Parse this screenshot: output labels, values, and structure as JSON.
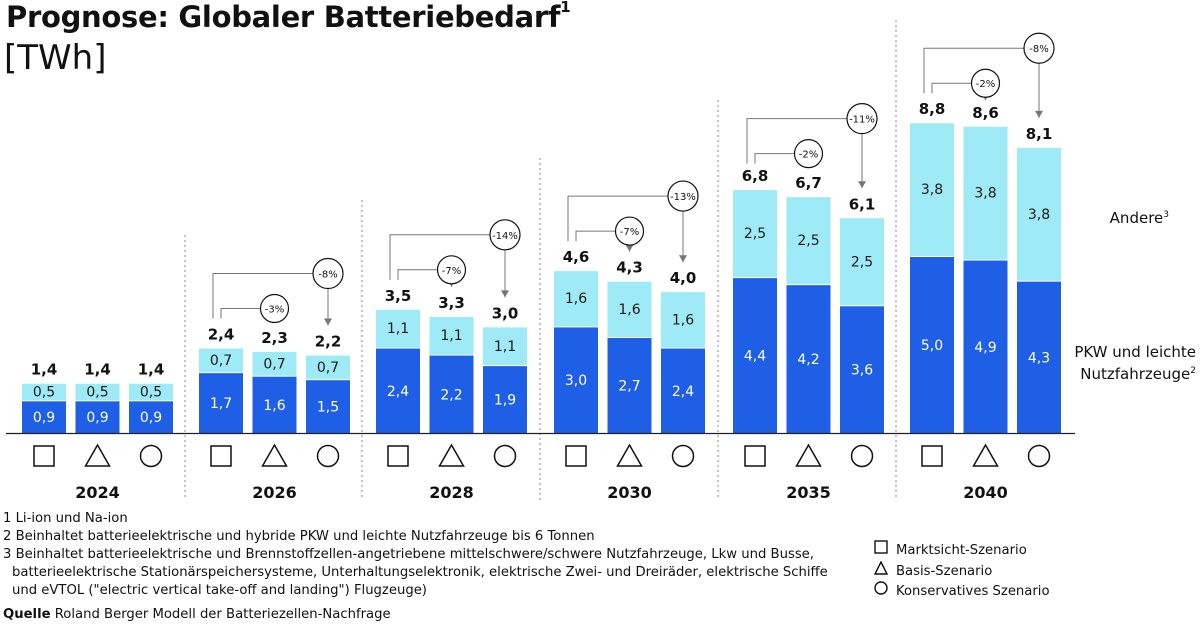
{
  "title": "Prognose: Globaler Batteriebedarf",
  "title_sup": "1",
  "unit": "[TWh]",
  "chart_data": {
    "type": "bar",
    "stacked": true,
    "years": [
      "2024",
      "2026",
      "2028",
      "2030",
      "2035",
      "2040"
    ],
    "scenarios": [
      "Marktsicht-Szenario",
      "Basis-Szenario",
      "Konservatives Szenario"
    ],
    "series": [
      {
        "name": "PKW und leichte Nutzfahrzeuge",
        "name_sup": "2",
        "color": "#1f5fe6",
        "label_color": "#ffffff",
        "values": [
          [
            0.9,
            0.9,
            0.9
          ],
          [
            1.7,
            1.6,
            1.5
          ],
          [
            2.4,
            2.2,
            1.9
          ],
          [
            3.0,
            2.7,
            2.4
          ],
          [
            4.4,
            4.2,
            3.6
          ],
          [
            5.0,
            4.9,
            4.3
          ]
        ]
      },
      {
        "name": "Andere",
        "name_sup": "3",
        "color": "#9eeaf6",
        "label_color": "#1a1a1a",
        "values": [
          [
            0.5,
            0.5,
            0.5
          ],
          [
            0.7,
            0.7,
            0.7
          ],
          [
            1.1,
            1.1,
            1.1
          ],
          [
            1.6,
            1.6,
            1.6
          ],
          [
            2.5,
            2.5,
            2.5
          ],
          [
            3.8,
            3.8,
            3.8
          ]
        ]
      }
    ],
    "totals": [
      [
        1.4,
        1.4,
        1.4
      ],
      [
        2.4,
        2.3,
        2.2
      ],
      [
        3.5,
        3.3,
        3.0
      ],
      [
        4.6,
        4.3,
        4.0
      ],
      [
        6.8,
        6.7,
        6.1
      ],
      [
        8.8,
        8.6,
        8.1
      ]
    ],
    "deltas": [
      null,
      [
        "-3%",
        "-8%"
      ],
      [
        "-7%",
        "-14%"
      ],
      [
        "-7%",
        "-13%"
      ],
      [
        "-2%",
        "-11%"
      ],
      [
        "-2%",
        "-8%"
      ]
    ],
    "decimal_separator": ","
  },
  "legend": {
    "series_labels": [
      {
        "text": "Andere",
        "sup": "3"
      },
      {
        "text": "PKW und leichte",
        "text2": "Nutzfahrzeuge",
        "sup": "2"
      }
    ],
    "scenarios": [
      {
        "symbol": "square",
        "label": "Marktsicht-Szenario"
      },
      {
        "symbol": "triangle",
        "label": "Basis-Szenario"
      },
      {
        "symbol": "circle",
        "label": "Konservatives Szenario"
      }
    ]
  },
  "footnotes": [
    "1 Li-ion und Na-ion",
    "2 Beinhaltet batterieelektrische und hybride PKW und leichte Nutzfahrzeuge bis 6 Tonnen",
    "3 Beinhaltet batterieelektrische und Brennstoffzellen-angetriebene mittelschwere/schwere Nutzfahrzeuge, Lkw und Busse,",
    "batterieelektrische Stationärspeichersysteme, Unterhaltungselektronik, elektrische Zwei- und Dreiräder, elektrische Schiffe",
    "und eVTOL (\"electric vertical take-off and landing\") Flugzeuge)"
  ],
  "source": {
    "label": "Quelle",
    "text": "Roland Berger Modell der Batteriezellen-Nachfrage"
  }
}
